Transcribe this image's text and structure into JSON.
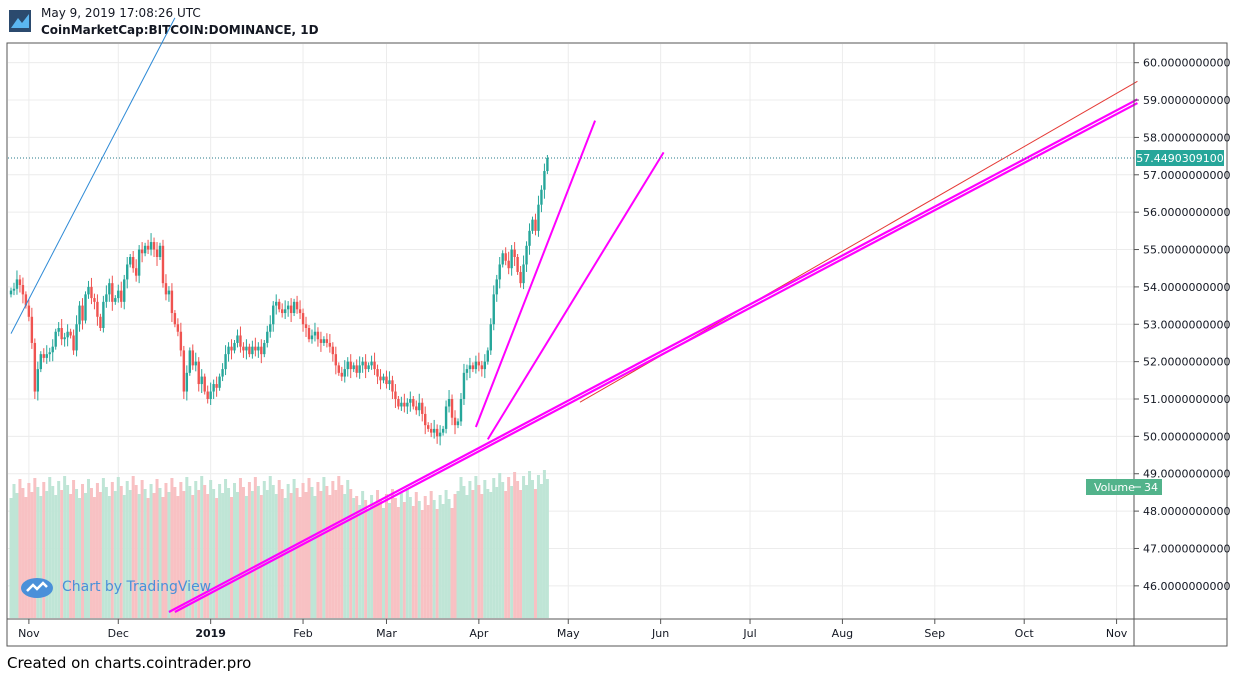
{
  "header": {
    "timestamp": "May 9, 2019 17:08:26 UTC",
    "symbol": "CoinMarketCap:BITCOIN:DOMINANCE, 1D"
  },
  "footer": {
    "text": "Created on charts.cointrader.pro"
  },
  "watermark": {
    "text": "Chart by TradingView"
  },
  "colors": {
    "up": "#26a69a",
    "down": "#ef5350",
    "vol_up": "#bfe5d6",
    "vol_down": "#f8c1c3",
    "magenta": "#ff00ff",
    "blue_line": "#2e8ad6",
    "red_line": "#e53935",
    "grid": "#ececec",
    "price_label": "#26a69a",
    "volume_label": "#52b38b"
  },
  "chart_data": {
    "type": "candlestick",
    "xlabels": [
      "Nov",
      "Dec",
      "2019",
      "Feb",
      "Mar",
      "Apr",
      "May",
      "Jun",
      "Jul",
      "Aug",
      "Sep",
      "Oct",
      "Nov"
    ],
    "ylabels": [
      "60.0000000000",
      "59.0000000000",
      "58.0000000000",
      "57.0000000000",
      "56.0000000000",
      "55.0000000000",
      "54.0000000000",
      "53.0000000000",
      "52.0000000000",
      "51.0000000000",
      "50.0000000000",
      "49.0000000000",
      "48.0000000000",
      "47.0000000000",
      "46.0000000000"
    ],
    "ylim": [
      45.3,
      60.5
    ],
    "last_price": 57.44903091,
    "last_price_label": "57.4490309100",
    "volume_label": "Volume",
    "volume_value": "34",
    "start_date": "2018-10-26",
    "closes": [
      53.9,
      53.95,
      54.2,
      54.05,
      53.8,
      53.5,
      53.2,
      52.5,
      51.2,
      51.8,
      52.2,
      52.1,
      52.2,
      52.25,
      52.4,
      52.8,
      52.9,
      52.6,
      52.65,
      52.8,
      52.7,
      52.3,
      53.0,
      53.5,
      53.1,
      53.8,
      54.0,
      53.7,
      53.6,
      53.2,
      52.9,
      53.6,
      53.8,
      54.1,
      53.6,
      53.7,
      53.9,
      53.6,
      54.2,
      54.6,
      54.8,
      54.5,
      54.3,
      55.0,
      54.9,
      55.1,
      55.0,
      55.2,
      55.0,
      54.8,
      55.1,
      54.1,
      53.8,
      53.9,
      53.3,
      53.0,
      52.8,
      52.3,
      51.2,
      51.7,
      52.3,
      51.9,
      52.0,
      51.4,
      51.6,
      51.2,
      51.0,
      51.2,
      51.4,
      51.3,
      51.6,
      51.8,
      52.2,
      52.4,
      52.3,
      52.5,
      52.7,
      52.4,
      52.3,
      52.4,
      52.2,
      52.4,
      52.3,
      52.4,
      52.2,
      52.5,
      52.8,
      53.0,
      53.5,
      53.6,
      53.4,
      53.3,
      53.4,
      53.5,
      53.3,
      53.6,
      53.4,
      53.3,
      53.0,
      52.9,
      52.6,
      52.7,
      52.8,
      52.6,
      52.5,
      52.6,
      52.5,
      52.4,
      52.2,
      51.9,
      51.7,
      51.6,
      51.8,
      52.0,
      51.8,
      51.9,
      51.7,
      51.9,
      52.0,
      51.8,
      51.9,
      52.0,
      51.8,
      51.6,
      51.5,
      51.6,
      51.4,
      51.5,
      51.2,
      51.0,
      50.8,
      50.9,
      50.8,
      50.9,
      51.0,
      50.8,
      50.7,
      50.9,
      50.6,
      50.3,
      50.2,
      50.1,
      50.2,
      50.0,
      50.1,
      50.2,
      50.8,
      51.0,
      50.5,
      50.3,
      50.4,
      51.0,
      51.7,
      51.8,
      51.9,
      51.8,
      52.0,
      51.9,
      51.8,
      52.0,
      52.3,
      53.0,
      53.8,
      54.2,
      54.6,
      54.9,
      54.7,
      54.5,
      55.0,
      54.8,
      54.4,
      54.1,
      54.6,
      55.1,
      55.5,
      55.8,
      55.5,
      56.2,
      56.6,
      57.1,
      57.45
    ]
  }
}
